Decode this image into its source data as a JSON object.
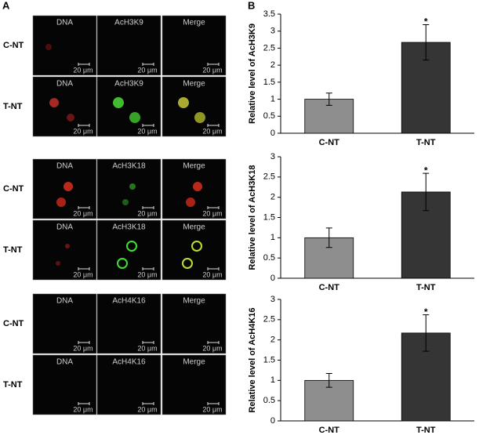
{
  "figure": {
    "panel_labels": [
      "A",
      "B"
    ]
  },
  "panel_a": {
    "groups": [
      {
        "rows": [
          {
            "label": "C-NT",
            "panels": [
              "DNA",
              "AcH3K9",
              "Merge"
            ],
            "scale": "20 μm"
          },
          {
            "label": "T-NT",
            "panels": [
              "DNA",
              "AcH3K9",
              "Merge"
            ],
            "scale": "20 μm"
          }
        ]
      },
      {
        "rows": [
          {
            "label": "C-NT",
            "panels": [
              "DNA",
              "AcH3K18",
              "Merge"
            ],
            "scale": "20 μm"
          },
          {
            "label": "T-NT",
            "panels": [
              "DNA",
              "AcH3K18",
              "Merge"
            ],
            "scale": "20 μm"
          }
        ]
      },
      {
        "rows": [
          {
            "label": "C-NT",
            "panels": [
              "DNA",
              "AcH4K16",
              "Merge"
            ],
            "scale": "20 μm"
          },
          {
            "label": "T-NT",
            "panels": [
              "DNA",
              "AcH4K16",
              "Merge"
            ],
            "scale": "20 μm"
          }
        ]
      }
    ]
  },
  "chart_data": [
    {
      "type": "bar",
      "y_label": "Relative level of AcH3K9",
      "categories": [
        "C-NT",
        "T-NT"
      ],
      "values": [
        1.0,
        2.67
      ],
      "errors": [
        0.18,
        0.52
      ],
      "colors": [
        "#8e8e8e",
        "#353535"
      ],
      "annotation": "*",
      "ylim": [
        0,
        3.5
      ],
      "yticks": [
        0,
        0.5,
        1,
        1.5,
        2,
        2.5,
        3,
        3.5
      ]
    },
    {
      "type": "bar",
      "y_label": "Relative level of AcH3K18",
      "categories": [
        "C-NT",
        "T-NT"
      ],
      "values": [
        1.0,
        2.13
      ],
      "errors": [
        0.24,
        0.46
      ],
      "colors": [
        "#8e8e8e",
        "#353535"
      ],
      "annotation": "*",
      "ylim": [
        0,
        3
      ],
      "yticks": [
        0,
        0.5,
        1,
        1.5,
        2,
        2.5,
        3
      ]
    },
    {
      "type": "bar",
      "y_label": "Relative level of AcH4K16",
      "categories": [
        "C-NT",
        "T-NT"
      ],
      "values": [
        1.0,
        2.17
      ],
      "errors": [
        0.17,
        0.45
      ],
      "colors": [
        "#8e8e8e",
        "#353535"
      ],
      "annotation": "*",
      "ylim": [
        0,
        3
      ],
      "yticks": [
        0,
        0.5,
        1,
        1.5,
        2,
        2.5,
        3
      ]
    }
  ]
}
